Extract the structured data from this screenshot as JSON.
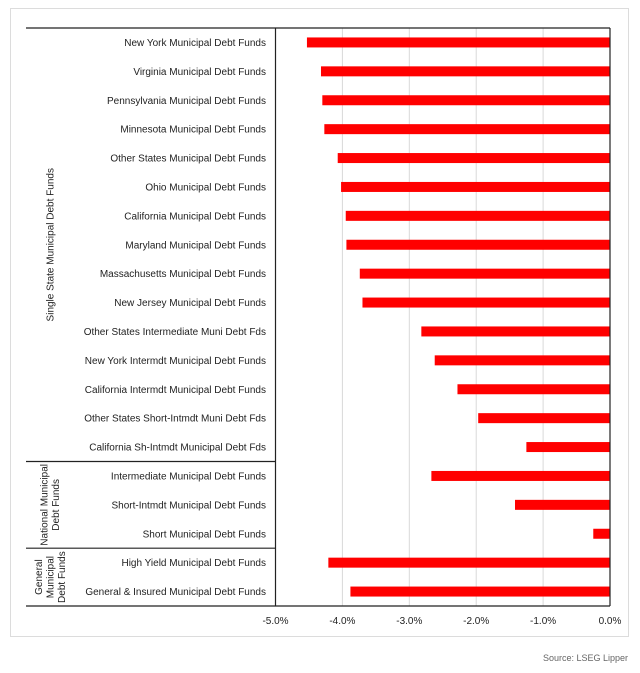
{
  "chart_data": {
    "type": "bar",
    "orientation": "horizontal",
    "categories": [
      "New York Municipal Debt Funds",
      "Virginia Municipal Debt Funds",
      "Pennsylvania Municipal Debt Funds",
      "Minnesota Municipal Debt Funds",
      "Other States Municipal Debt Funds",
      "Ohio Municipal Debt Funds",
      "California Municipal Debt Funds",
      "Maryland Municipal Debt Funds",
      "Massachusetts Municipal Debt Funds",
      "New Jersey Municipal Debt Funds",
      "Other States Intermediate Muni Debt Fds",
      "New York Intermdt Municipal Debt Funds",
      "California Intermdt Municipal Debt Funds",
      "Other States Short-Intmdt Muni Debt Fds",
      "California Sh-Intmdt Municipal Debt Fds",
      "Intermediate Municipal Debt Funds",
      "Short-Intmdt Municipal Debt Funds",
      "Short Municipal Debt Funds",
      "High Yield Municipal Debt Funds",
      "General & Insured Municipal Debt Funds"
    ],
    "values": [
      -4.53,
      -4.32,
      -4.3,
      -4.27,
      -4.07,
      -4.02,
      -3.95,
      -3.94,
      -3.74,
      -3.7,
      -2.82,
      -2.62,
      -2.28,
      -1.97,
      -1.25,
      -2.67,
      -1.42,
      -0.25,
      -4.21,
      -3.88
    ],
    "groups": [
      {
        "name": [
          "Single State Municipal Debt Funds"
        ],
        "count": 15
      },
      {
        "name": [
          "National Municipal",
          "Debt Funds"
        ],
        "count": 3
      },
      {
        "name": [
          "General",
          "Municipal",
          "Debt Funds"
        ],
        "count": 2
      }
    ],
    "xlim": [
      -5.0,
      0.0
    ],
    "xticks": [
      "-5.0%",
      "-4.0%",
      "-3.0%",
      "-2.0%",
      "-1.0%",
      "0.0%"
    ],
    "grid": true,
    "bar_color": "#ff0000",
    "title": "",
    "xlabel": "",
    "ylabel": ""
  },
  "source": "Source: LSEG Lipper"
}
